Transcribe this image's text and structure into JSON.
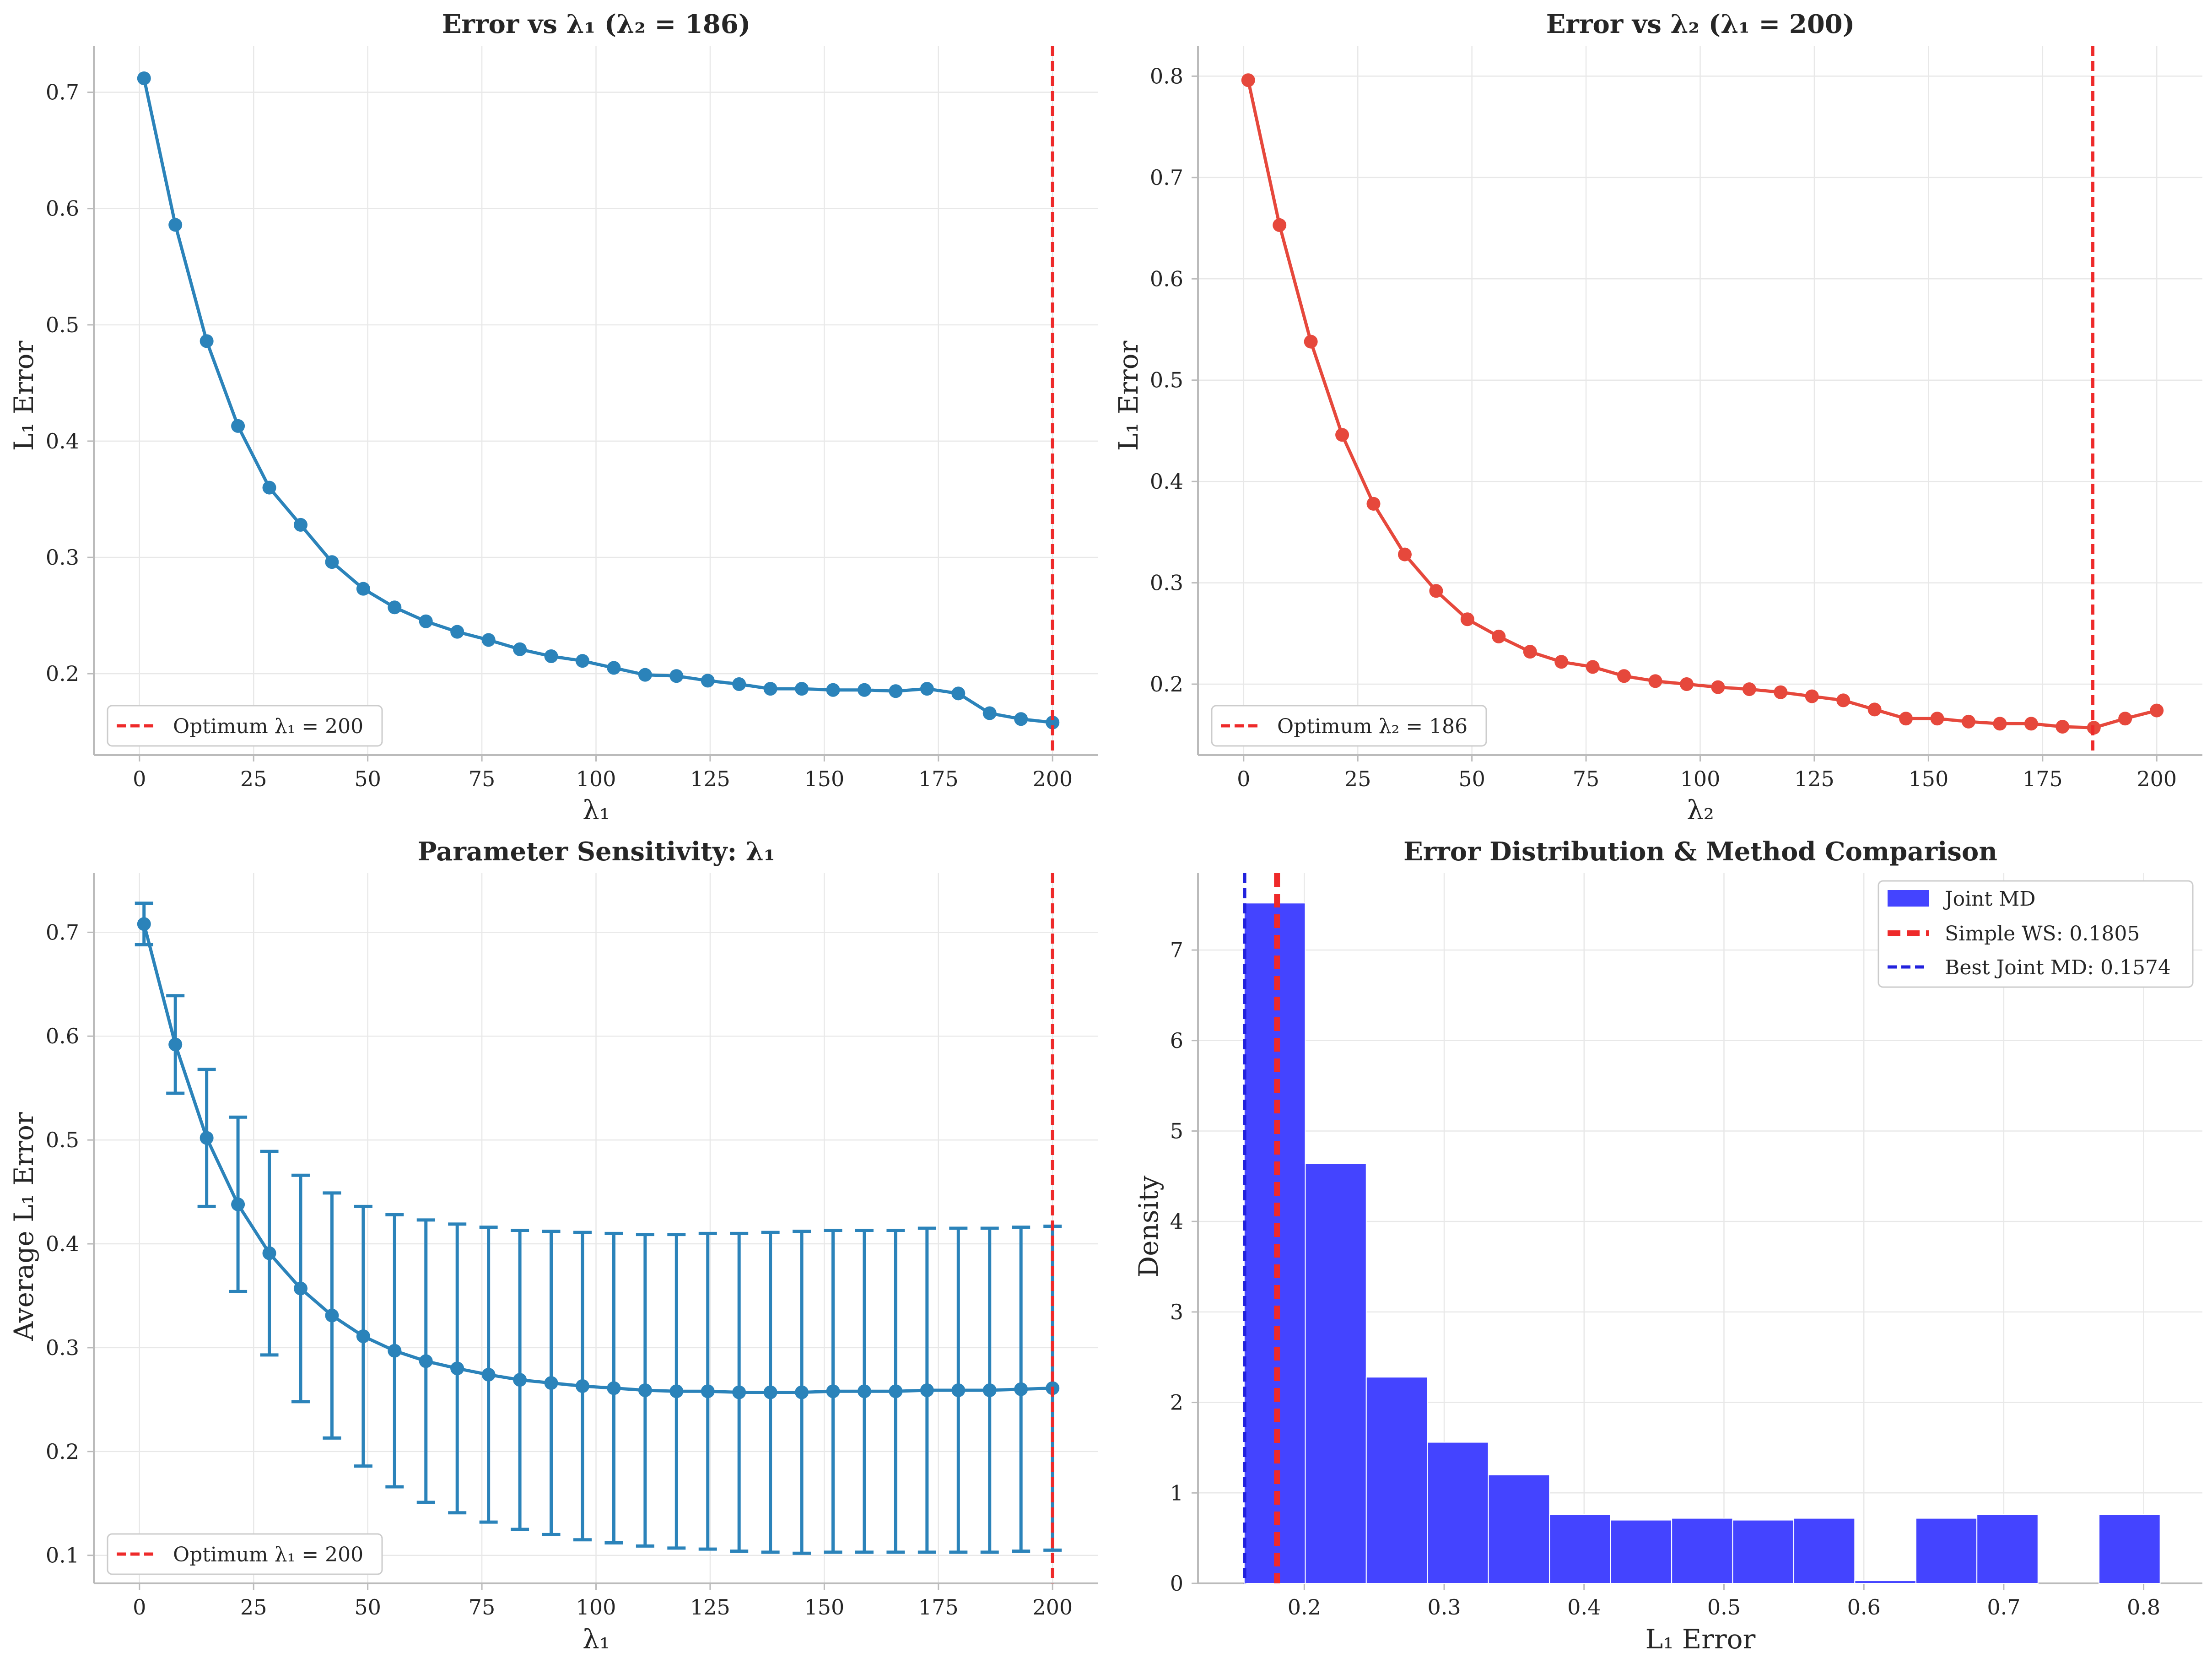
{
  "colors": {
    "blue": "#2b83ba",
    "red": "#e6483c",
    "optimum": "#ee2a2a",
    "hist": "#4444ff",
    "best": "#2222dd",
    "grid": "#e8e8e8",
    "spine": "#bbbbbb"
  },
  "chart_data": [
    {
      "type": "line",
      "title": "Error vs λ₁ (λ₂ = 186)",
      "xlabel": "λ₁",
      "ylabel": "L₁ Error",
      "xlim": [
        -10,
        210
      ],
      "ylim": [
        0.13,
        0.74
      ],
      "xticks": [
        0,
        25,
        50,
        75,
        100,
        125,
        150,
        175,
        200
      ],
      "yticks": [
        0.2,
        0.3,
        0.4,
        0.5,
        0.6,
        0.7
      ],
      "grid": true,
      "legend_position": "lower-left",
      "series": [
        {
          "color": "blue",
          "x": [
            1,
            7.86,
            14.72,
            21.58,
            28.44,
            35.3,
            42.16,
            49.02,
            55.88,
            62.74,
            69.6,
            76.46,
            83.32,
            90.18,
            97.04,
            103.9,
            110.76,
            117.62,
            124.48,
            131.34,
            138.2,
            145.06,
            151.92,
            158.78,
            165.64,
            172.5,
            179.36,
            186.22,
            193.08,
            200
          ],
          "y": [
            0.712,
            0.586,
            0.486,
            0.413,
            0.36,
            0.328,
            0.296,
            0.273,
            0.257,
            0.245,
            0.236,
            0.229,
            0.221,
            0.215,
            0.211,
            0.205,
            0.199,
            0.198,
            0.194,
            0.191,
            0.187,
            0.187,
            0.186,
            0.186,
            0.185,
            0.187,
            0.183,
            0.166,
            0.161,
            0.158
          ]
        }
      ],
      "optimum": {
        "x": 200,
        "label": "Optimum λ₁ = 200"
      }
    },
    {
      "type": "line",
      "title": "Error vs λ₂ (λ₁ = 200)",
      "xlabel": "λ₂",
      "ylabel": "L₁ Error",
      "xlim": [
        -10,
        210
      ],
      "ylim": [
        0.13,
        0.83
      ],
      "xticks": [
        0,
        25,
        50,
        75,
        100,
        125,
        150,
        175,
        200
      ],
      "yticks": [
        0.2,
        0.3,
        0.4,
        0.5,
        0.6,
        0.7,
        0.8
      ],
      "grid": true,
      "legend_position": "lower-left",
      "series": [
        {
          "color": "red",
          "x": [
            1,
            7.86,
            14.72,
            21.58,
            28.44,
            35.3,
            42.16,
            49.02,
            55.88,
            62.74,
            69.6,
            76.46,
            83.32,
            90.18,
            97.04,
            103.9,
            110.76,
            117.62,
            124.48,
            131.34,
            138.2,
            145.06,
            151.92,
            158.78,
            165.64,
            172.5,
            179.36,
            186.22,
            193.08,
            200
          ],
          "y": [
            0.796,
            0.653,
            0.538,
            0.446,
            0.378,
            0.328,
            0.292,
            0.264,
            0.247,
            0.232,
            0.222,
            0.217,
            0.208,
            0.203,
            0.2,
            0.197,
            0.195,
            0.192,
            0.188,
            0.184,
            0.175,
            0.166,
            0.166,
            0.163,
            0.161,
            0.161,
            0.158,
            0.157,
            0.166,
            0.174
          ]
        }
      ],
      "optimum": {
        "x": 186,
        "label": "Optimum λ₂ = 186"
      }
    },
    {
      "type": "line",
      "title": "Parameter Sensitivity: λ₁",
      "xlabel": "λ₁",
      "ylabel": "Average L₁ Error",
      "xlim": [
        -10,
        210
      ],
      "ylim": [
        0.073,
        0.757
      ],
      "xticks": [
        0,
        25,
        50,
        75,
        100,
        125,
        150,
        175,
        200
      ],
      "yticks": [
        0.1,
        0.2,
        0.3,
        0.4,
        0.5,
        0.6,
        0.7
      ],
      "grid": true,
      "legend_position": "lower-left",
      "series": [
        {
          "color": "blue",
          "x": [
            1,
            7.86,
            14.72,
            21.58,
            28.44,
            35.3,
            42.16,
            49.02,
            55.88,
            62.74,
            69.6,
            76.46,
            83.32,
            90.18,
            97.04,
            103.9,
            110.76,
            117.62,
            124.48,
            131.34,
            138.2,
            145.06,
            151.92,
            158.78,
            165.64,
            172.5,
            179.36,
            186.22,
            193.08,
            200
          ],
          "y": [
            0.708,
            0.592,
            0.502,
            0.438,
            0.391,
            0.357,
            0.331,
            0.311,
            0.297,
            0.287,
            0.28,
            0.274,
            0.269,
            0.266,
            0.263,
            0.261,
            0.259,
            0.258,
            0.258,
            0.257,
            0.257,
            0.257,
            0.258,
            0.258,
            0.258,
            0.259,
            0.259,
            0.259,
            0.26,
            0.261
          ],
          "err": [
            0.02,
            0.047,
            0.066,
            0.084,
            0.098,
            0.109,
            0.118,
            0.125,
            0.131,
            0.136,
            0.139,
            0.142,
            0.144,
            0.146,
            0.148,
            0.149,
            0.15,
            0.151,
            0.152,
            0.153,
            0.154,
            0.155,
            0.155,
            0.155,
            0.155,
            0.156,
            0.156,
            0.156,
            0.156,
            0.156
          ]
        }
      ],
      "optimum": {
        "x": 200,
        "label": "Optimum λ₁ = 200"
      }
    },
    {
      "type": "histogram",
      "title": "Error Distribution & Method Comparison",
      "xlabel": "L₁ Error",
      "ylabel": "Density",
      "xlim": [
        0.124,
        0.842
      ],
      "ylim": [
        0,
        7.85
      ],
      "xticks": [
        0.2,
        0.3,
        0.4,
        0.5,
        0.6,
        0.7,
        0.8
      ],
      "yticks": [
        0,
        1,
        2,
        3,
        4,
        5,
        6,
        7
      ],
      "grid": true,
      "legend_position": "upper-right",
      "bins": [
        0.157,
        0.2007,
        0.2443,
        0.288,
        0.3316,
        0.3753,
        0.4189,
        0.4626,
        0.5062,
        0.5499,
        0.5935,
        0.6372,
        0.6808,
        0.7245,
        0.7681,
        0.8118
      ],
      "density": [
        7.52,
        4.64,
        2.28,
        1.56,
        1.2,
        0.76,
        0.7,
        0.72,
        0.7,
        0.72,
        0.03,
        0.72,
        0.76,
        0.0,
        0.76
      ],
      "series": [
        {
          "name": "Joint MD",
          "color": "hist"
        }
      ],
      "vlines": [
        {
          "x": 0.1805,
          "label": "Simple WS: 0.1805",
          "color": "optimum",
          "style": "thick-dashed"
        },
        {
          "x": 0.1574,
          "label": "Best Joint MD: 0.1574",
          "color": "best",
          "style": "dashed"
        }
      ]
    }
  ]
}
